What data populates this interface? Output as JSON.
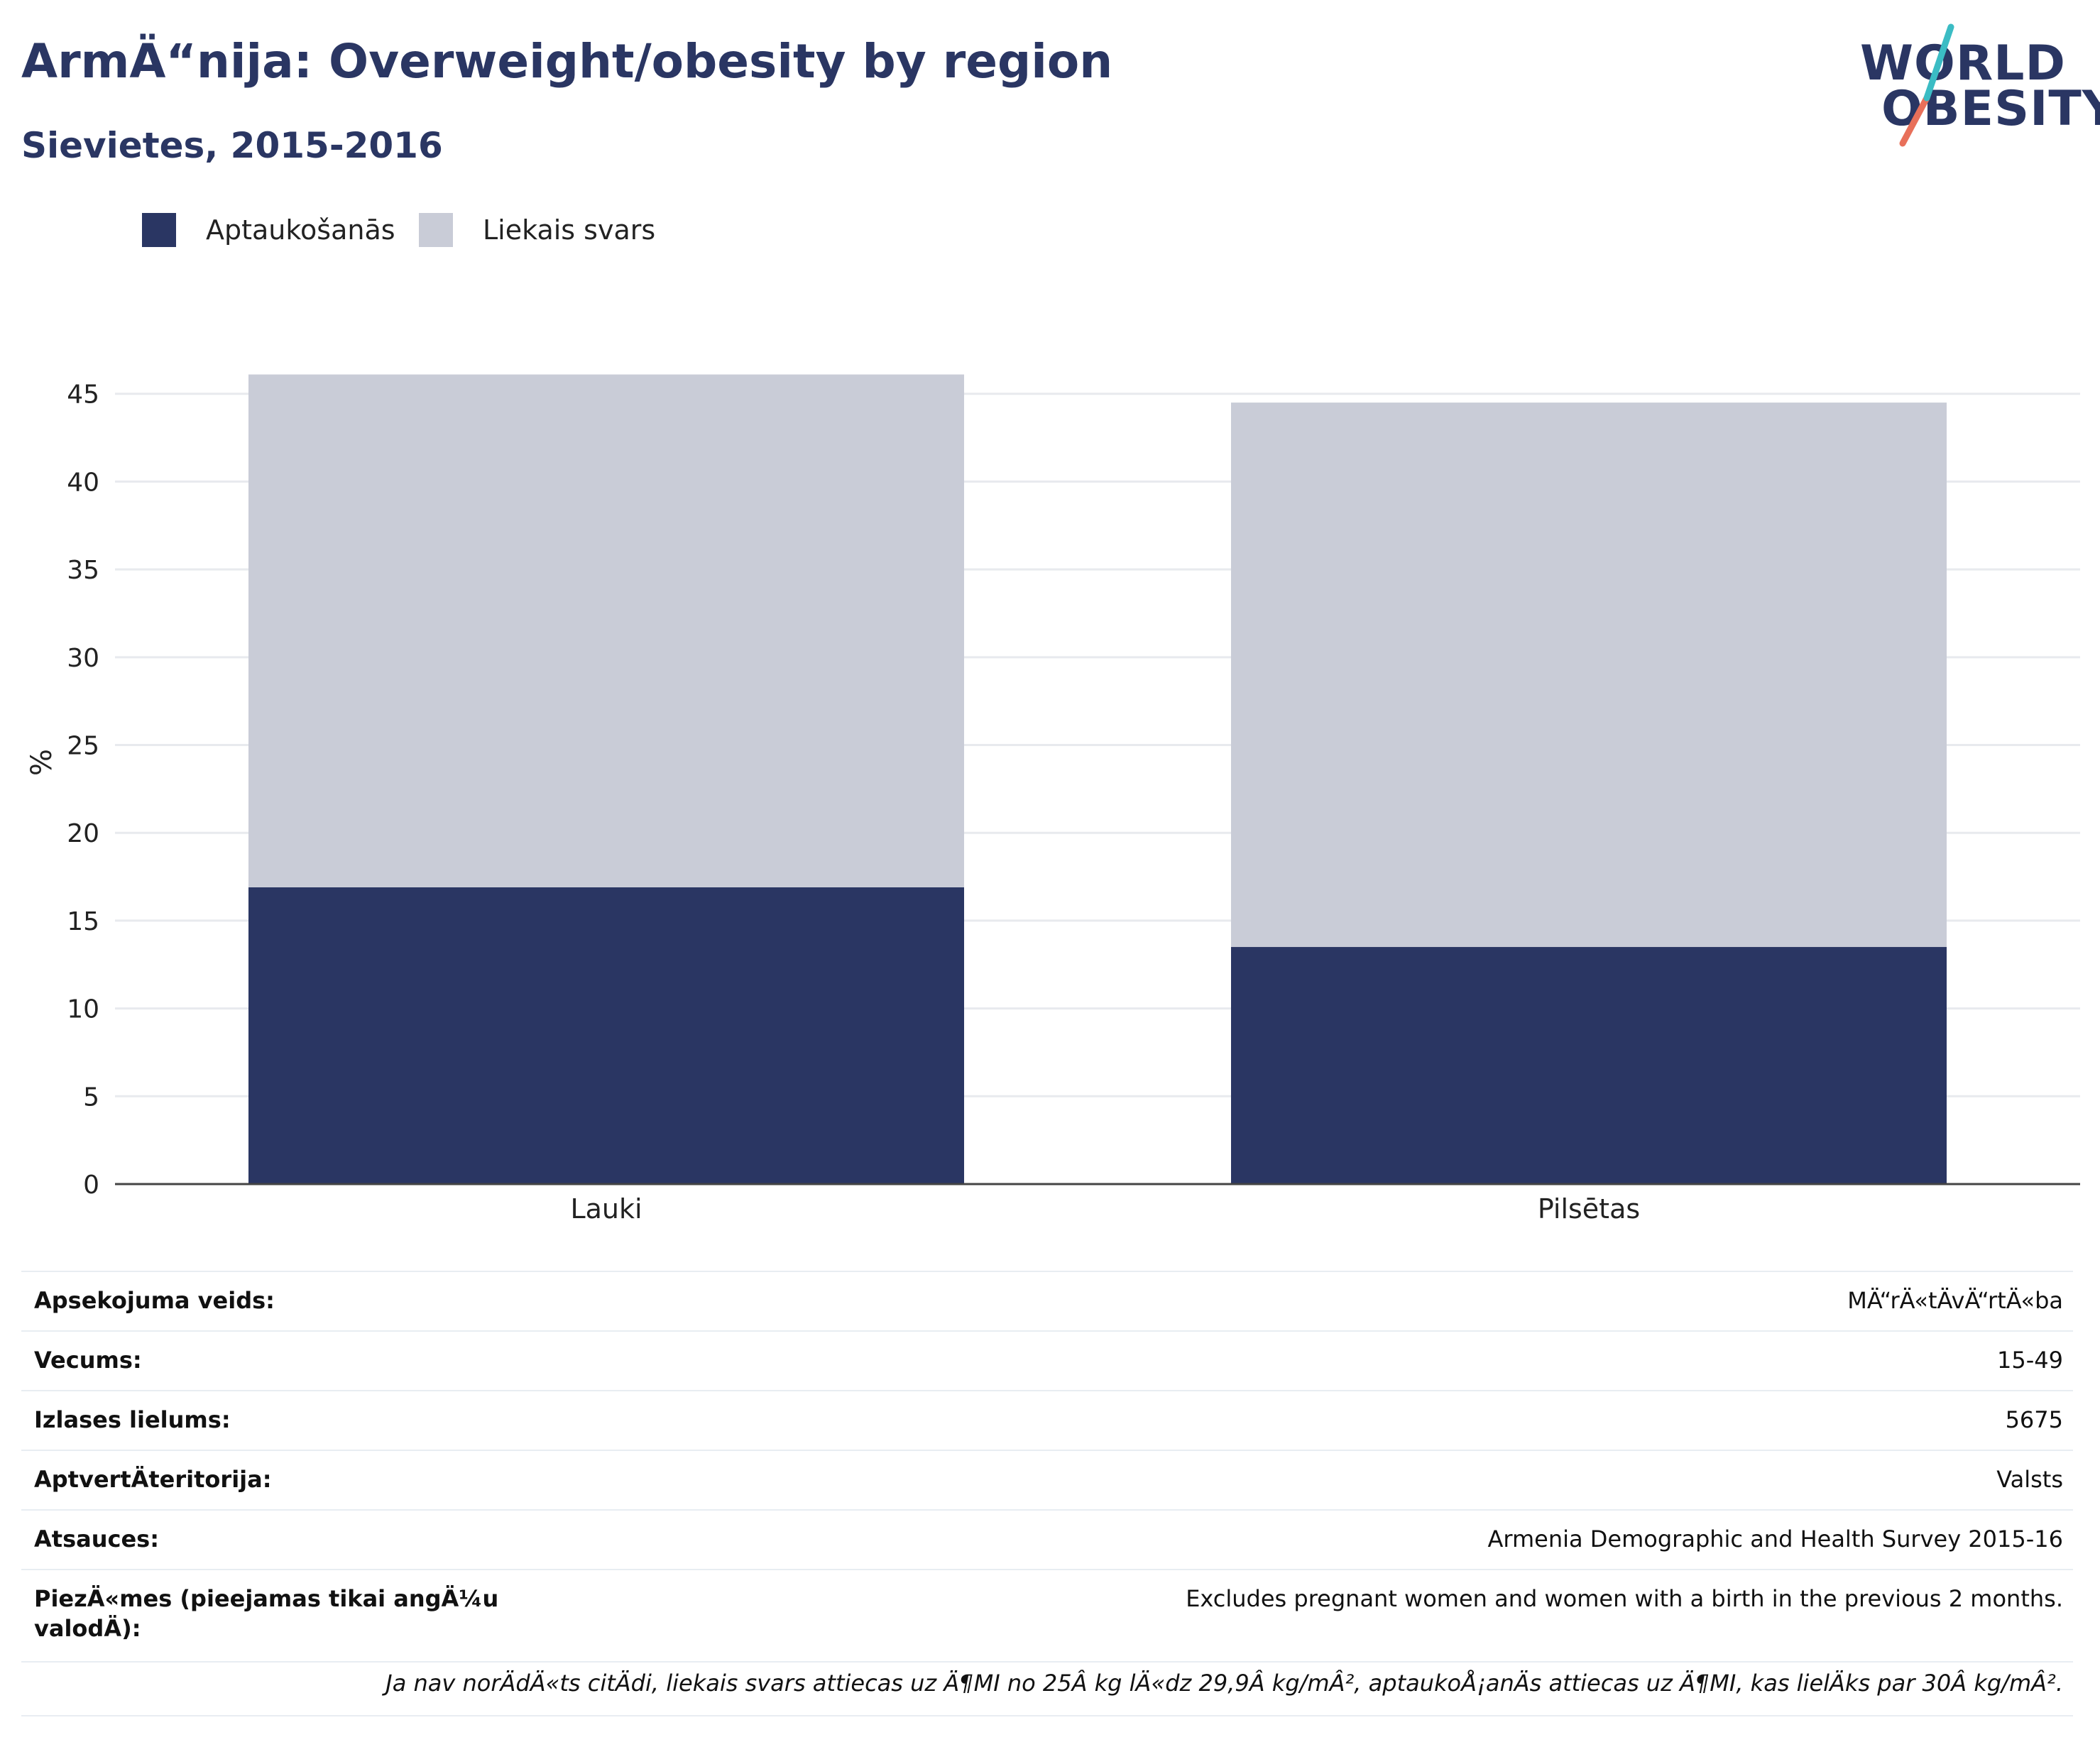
{
  "title": "ArmÄ“nija: Overweight/obesity by region",
  "subtitle": "Sievietes, 2015-2016",
  "logo": {
    "line1": "WORLD",
    "line2": "OBESITY"
  },
  "colors": {
    "obesity": "#2a3663",
    "overweight": "#c9ccd7",
    "title": "#2a3663",
    "slash_teal": "#3bbcc4",
    "slash_coral": "#e8705a"
  },
  "chart_data": {
    "type": "bar",
    "stacked": true,
    "categories": [
      "Lauki",
      "Pilsētas"
    ],
    "series": [
      {
        "name": "Aptaukošanās",
        "values": [
          16.9,
          13.5
        ]
      },
      {
        "name": "Liekais svars",
        "values": [
          29.2,
          31.0
        ]
      }
    ],
    "ylabel": "%",
    "ylim": [
      0,
      46
    ],
    "yticks": [
      0,
      5,
      10,
      15,
      20,
      25,
      30,
      35,
      40,
      45
    ],
    "grid": true,
    "legend": "top-left"
  },
  "meta": [
    {
      "key": "Apsekojuma veids:",
      "value": "MÄ“rÄ«tÄvÄ“rtÄ«ba"
    },
    {
      "key": "Vecums:",
      "value": "15-49"
    },
    {
      "key": "Izlases lielums:",
      "value": "5675"
    },
    {
      "key": "AptvertÄteritorija:",
      "value": "Valsts"
    },
    {
      "key": "Atsauces:",
      "value": "Armenia Demographic and Health Survey 2015-16"
    },
    {
      "key": "PiezÄ«mes (pieejamas tikai angÄ¼u valodÄ):",
      "value": "Excludes pregnant women and women with a birth in the previous 2 months."
    }
  ],
  "note": "Ja nav norÄdÄ«ts citÄdi, liekais svars attiecas uz Ä¶MI no 25Â kg lÄ«dz 29,9Â kg/mÂ², aptaukoÅ¡anÄs attiecas uz Ä¶MI, kas lielÄks par 30Â kg/mÂ²."
}
